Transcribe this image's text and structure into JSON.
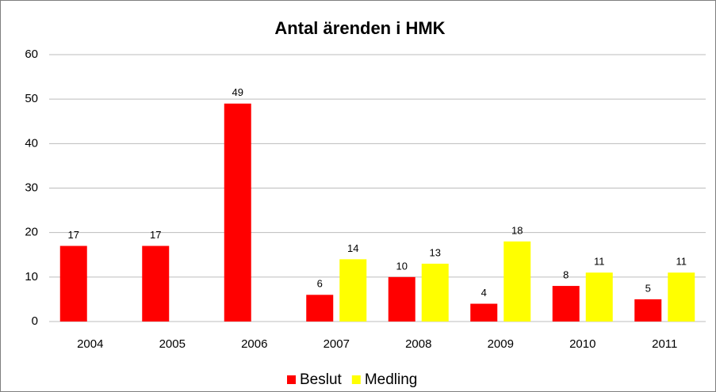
{
  "chart_data": {
    "type": "bar",
    "title": "Antal ärenden i HMK",
    "categories": [
      "2004",
      "2005",
      "2006",
      "2007",
      "2008",
      "2009",
      "2010",
      "2011"
    ],
    "series": [
      {
        "name": "Beslut",
        "color": "#ff0000",
        "values": [
          17,
          17,
          49,
          6,
          10,
          4,
          8,
          5
        ]
      },
      {
        "name": "Medling",
        "color": "#ffff00",
        "values": [
          null,
          null,
          null,
          14,
          13,
          18,
          11,
          11
        ]
      }
    ],
    "ylim": [
      0,
      60
    ],
    "yticks": [
      0,
      10,
      20,
      30,
      40,
      50,
      60
    ],
    "grid": true,
    "legend": "bottom"
  }
}
